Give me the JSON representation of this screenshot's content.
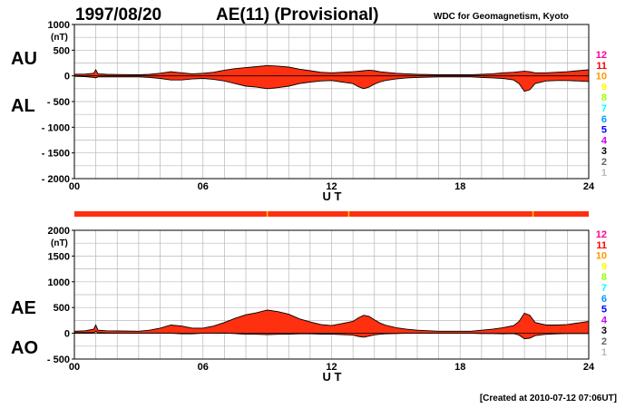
{
  "header": {
    "date": "1997/08/20",
    "title": "AE(11) (Provisional)",
    "source": "WDC for Geomagnetism, Kyoto"
  },
  "footer": {
    "created": "[Created at 2010-07-12 07:06UT]"
  },
  "colors": {
    "fill": "#ff3010",
    "outline": "#000000",
    "grid": "#b8b8b8",
    "qualityBar": "#ff3010",
    "qualityMark": "#ffcc00"
  },
  "quality_scale": [
    {
      "label": "12",
      "color": "#ff0099"
    },
    {
      "label": "11",
      "color": "#ff0000"
    },
    {
      "label": "10",
      "color": "#ff9900"
    },
    {
      "label": "9",
      "color": "#ffff00"
    },
    {
      "label": "8",
      "color": "#99ff00"
    },
    {
      "label": "7",
      "color": "#00ffff"
    },
    {
      "label": "6",
      "color": "#0099ff"
    },
    {
      "label": "5",
      "color": "#0000ff"
    },
    {
      "label": "4",
      "color": "#cc00ff"
    },
    {
      "label": "3",
      "color": "#000000"
    },
    {
      "label": "2",
      "color": "#666666"
    },
    {
      "label": "1",
      "color": "#bbbbbb"
    }
  ],
  "quality_marks_hours": [
    9.0,
    12.8,
    21.4
  ],
  "chart_data": [
    {
      "type": "area",
      "name_upper": "AU",
      "name_lower": "AL",
      "unit": "(nT)",
      "xlabel": "U T",
      "xlim": [
        0,
        24
      ],
      "ylim": [
        -2000,
        1000
      ],
      "yticks": [
        1000,
        500,
        0,
        -500,
        -1000,
        -1500,
        -2000
      ],
      "ytick_labels": [
        "1000",
        "500",
        "0",
        "- 500",
        "- 1000",
        "- 1500",
        "- 2000"
      ],
      "xticks": [
        0,
        6,
        12,
        18,
        24
      ],
      "xtick_labels": [
        "00",
        "06",
        "12",
        "18",
        "24"
      ],
      "x": [
        0,
        0.5,
        0.9,
        1.0,
        1.1,
        1.5,
        2,
        3,
        3.5,
        4,
        4.5,
        5,
        5.5,
        6,
        6.5,
        7,
        7.5,
        8,
        8.5,
        9,
        9.5,
        10,
        10.5,
        11,
        11.5,
        12,
        12.5,
        13,
        13.25,
        13.5,
        13.75,
        14,
        14.25,
        14.5,
        15,
        15.5,
        16,
        17,
        18,
        18.5,
        19,
        19.5,
        20,
        20.5,
        20.75,
        21,
        21.25,
        21.5,
        22,
        22.5,
        23,
        23.5,
        24
      ],
      "upper": [
        30,
        35,
        50,
        120,
        40,
        30,
        25,
        20,
        30,
        50,
        80,
        60,
        40,
        50,
        70,
        110,
        140,
        160,
        180,
        200,
        190,
        170,
        130,
        100,
        70,
        60,
        70,
        80,
        90,
        100,
        110,
        100,
        80,
        70,
        50,
        40,
        30,
        20,
        20,
        20,
        30,
        40,
        60,
        70,
        80,
        90,
        80,
        60,
        60,
        70,
        80,
        100,
        120
      ],
      "lower": [
        -10,
        -15,
        -30,
        -40,
        -20,
        -20,
        -20,
        -20,
        -30,
        -50,
        -80,
        -80,
        -60,
        -50,
        -70,
        -100,
        -150,
        -200,
        -220,
        -250,
        -230,
        -200,
        -150,
        -120,
        -100,
        -90,
        -120,
        -150,
        -210,
        -250,
        -220,
        -160,
        -120,
        -90,
        -60,
        -40,
        -30,
        -20,
        -20,
        -20,
        -30,
        -40,
        -50,
        -80,
        -150,
        -300,
        -270,
        -150,
        -100,
        -90,
        -90,
        -100,
        -110
      ]
    },
    {
      "type": "area",
      "name_upper": "AE",
      "name_lower": "AO",
      "unit": "(nT)",
      "xlabel": "U T",
      "xlim": [
        0,
        24
      ],
      "ylim": [
        -500,
        2000
      ],
      "yticks": [
        2000,
        1500,
        1000,
        500,
        0,
        -500
      ],
      "ytick_labels": [
        "2000",
        "1500",
        "1000",
        "500",
        "0",
        "- 500"
      ],
      "xticks": [
        0,
        6,
        12,
        18,
        24
      ],
      "xtick_labels": [
        "00",
        "06",
        "12",
        "18",
        "24"
      ],
      "x": [
        0,
        0.5,
        0.9,
        1.0,
        1.1,
        1.5,
        2,
        3,
        3.5,
        4,
        4.5,
        5,
        5.5,
        6,
        6.5,
        7,
        7.5,
        8,
        8.5,
        9,
        9.5,
        10,
        10.5,
        11,
        11.5,
        12,
        12.5,
        13,
        13.25,
        13.5,
        13.75,
        14,
        14.25,
        14.5,
        15,
        15.5,
        16,
        17,
        18,
        18.5,
        19,
        19.5,
        20,
        20.5,
        20.75,
        21,
        21.25,
        21.5,
        22,
        22.5,
        23,
        23.5,
        24
      ],
      "upper": [
        40,
        50,
        80,
        160,
        60,
        50,
        45,
        40,
        60,
        100,
        160,
        140,
        100,
        100,
        140,
        210,
        290,
        360,
        400,
        450,
        420,
        370,
        280,
        220,
        170,
        150,
        190,
        230,
        300,
        350,
        330,
        260,
        200,
        160,
        110,
        80,
        60,
        40,
        40,
        40,
        60,
        80,
        110,
        150,
        230,
        390,
        350,
        210,
        160,
        160,
        170,
        200,
        230
      ],
      "lower": [
        10,
        10,
        10,
        40,
        10,
        5,
        0,
        0,
        0,
        0,
        0,
        -10,
        -10,
        0,
        0,
        5,
        -5,
        -20,
        -20,
        -25,
        -20,
        -15,
        -10,
        -10,
        -15,
        -15,
        -25,
        -35,
        -60,
        -75,
        -55,
        -30,
        -20,
        -10,
        -5,
        0,
        0,
        0,
        0,
        0,
        -5,
        -5,
        -10,
        -5,
        -35,
        -105,
        -95,
        -45,
        -20,
        -10,
        -5,
        -5,
        -5
      ]
    }
  ]
}
